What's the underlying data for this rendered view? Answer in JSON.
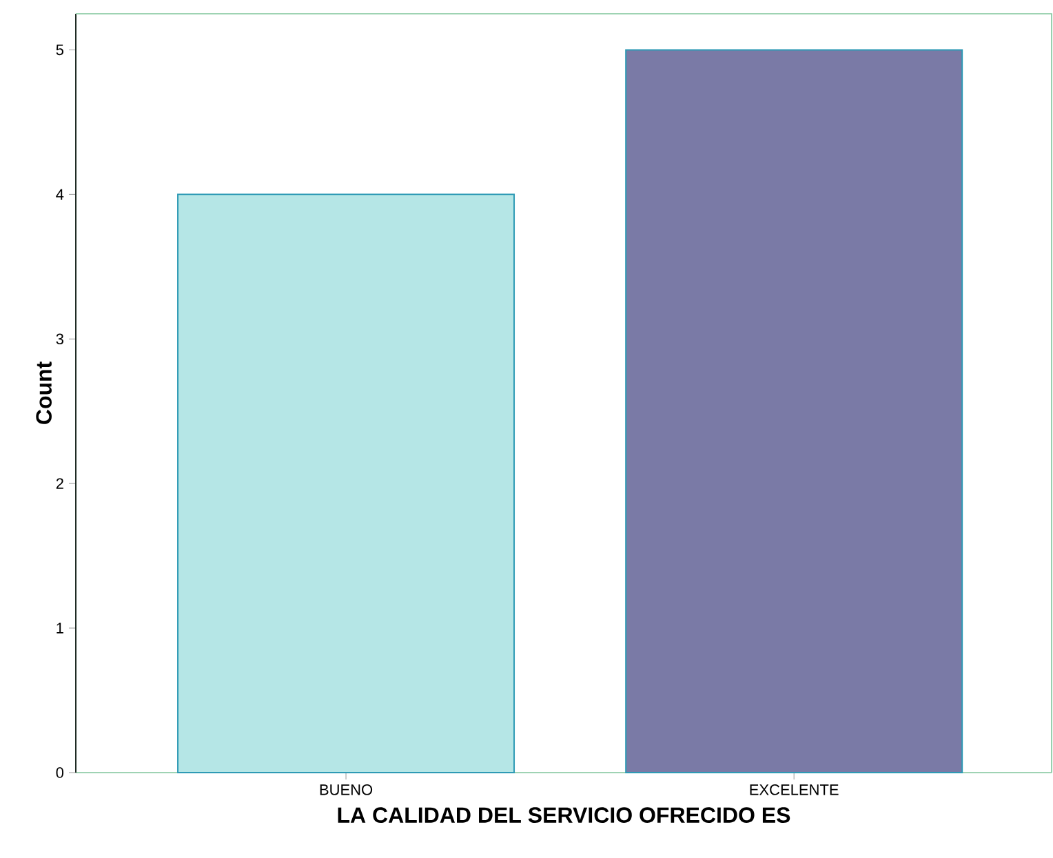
{
  "chart_data": {
    "type": "bar",
    "xlabel": "LA CALIDAD DEL SERVICIO OFRECIDO ES",
    "ylabel": "Count",
    "categories": [
      "BUENO",
      "EXCELENTE"
    ],
    "values": [
      4,
      5
    ],
    "colors": [
      "#b5e6e6",
      "#7a7aa6"
    ],
    "ylim": [
      0,
      5.25
    ],
    "yticks": [
      0,
      1,
      2,
      3,
      4,
      5
    ],
    "grid": false
  }
}
